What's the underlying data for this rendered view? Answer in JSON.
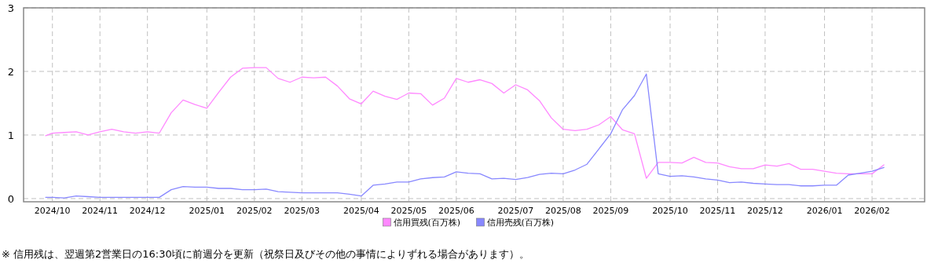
{
  "chart_data": {
    "type": "line",
    "x": [
      "2024-10-03",
      "2024-10-07",
      "2024-10-14",
      "2024-10-21",
      "2024-10-28",
      "2024-11-04",
      "2024-11-11",
      "2024-11-18",
      "2024-11-25",
      "2024-12-02",
      "2024-12-09",
      "2024-12-16",
      "2024-12-23",
      "2024-12-30",
      "2025-01-06",
      "2025-01-13",
      "2025-01-20",
      "2025-01-27",
      "2025-02-03",
      "2025-02-10",
      "2025-02-17",
      "2025-02-24",
      "2025-03-03",
      "2025-03-10",
      "2025-03-17",
      "2025-03-24",
      "2025-03-31",
      "2025-04-07",
      "2025-04-14",
      "2025-04-21",
      "2025-04-28",
      "2025-05-05",
      "2025-05-12",
      "2025-05-19",
      "2025-05-26",
      "2025-06-02",
      "2025-06-09",
      "2025-06-16",
      "2025-06-23",
      "2025-06-30",
      "2025-07-07",
      "2025-07-14",
      "2025-07-21",
      "2025-07-28",
      "2025-08-04",
      "2025-08-11",
      "2025-08-18",
      "2025-08-25",
      "2025-09-01",
      "2025-09-08",
      "2025-09-15",
      "2025-09-22",
      "2025-09-29",
      "2025-10-06",
      "2025-10-13",
      "2025-10-20",
      "2025-10-27",
      "2025-11-03",
      "2025-11-10",
      "2025-11-17",
      "2025-11-24",
      "2025-12-01",
      "2025-12-08",
      "2025-12-15",
      "2025-12-22",
      "2025-12-29",
      "2026-01-05",
      "2026-01-12",
      "2026-01-19",
      "2026-01-26",
      "2026-02-02",
      "2026-02-09"
    ],
    "series": [
      {
        "name": "信用買残(百万株)",
        "color": "#ff88ff",
        "values": [
          0.99,
          1.03,
          1.04,
          1.05,
          1.0,
          1.05,
          1.09,
          1.05,
          1.03,
          1.05,
          1.03,
          1.35,
          1.55,
          1.48,
          1.42,
          1.67,
          1.91,
          2.05,
          2.06,
          2.06,
          1.89,
          1.83,
          1.91,
          1.9,
          1.91,
          1.77,
          1.57,
          1.49,
          1.69,
          1.61,
          1.56,
          1.66,
          1.65,
          1.47,
          1.58,
          1.89,
          1.83,
          1.87,
          1.81,
          1.66,
          1.79,
          1.71,
          1.54,
          1.27,
          1.09,
          1.07,
          1.09,
          1.16,
          1.29,
          1.08,
          1.02,
          0.32,
          0.57,
          0.57,
          0.56,
          0.65,
          0.57,
          0.56,
          0.5,
          0.47,
          0.47,
          0.53,
          0.51,
          0.55,
          0.46,
          0.46,
          0.43,
          0.4,
          0.39,
          0.39,
          0.39,
          0.53
        ]
      },
      {
        "name": "信用売残(百万株)",
        "color": "#8888ff",
        "values": [
          0.02,
          0.02,
          0.01,
          0.04,
          0.03,
          0.02,
          0.02,
          0.02,
          0.02,
          0.02,
          0.02,
          0.14,
          0.19,
          0.18,
          0.18,
          0.16,
          0.16,
          0.14,
          0.14,
          0.15,
          0.11,
          0.1,
          0.09,
          0.09,
          0.09,
          0.09,
          0.07,
          0.04,
          0.21,
          0.23,
          0.26,
          0.26,
          0.31,
          0.33,
          0.34,
          0.42,
          0.4,
          0.39,
          0.31,
          0.32,
          0.3,
          0.33,
          0.38,
          0.4,
          0.39,
          0.45,
          0.54,
          0.78,
          1.02,
          1.4,
          1.62,
          1.96,
          0.39,
          0.35,
          0.36,
          0.34,
          0.31,
          0.29,
          0.25,
          0.26,
          0.24,
          0.23,
          0.22,
          0.22,
          0.2,
          0.2,
          0.21,
          0.21,
          0.37,
          0.4,
          0.43,
          0.49
        ]
      }
    ],
    "xlim": [
      "2024-09-20",
      "2026-03-05"
    ],
    "xticks": [
      {
        "value": "2024-10-07",
        "label": "2024/10"
      },
      {
        "value": "2024-11-04",
        "label": "2024/11"
      },
      {
        "value": "2024-12-02",
        "label": "2024/12"
      },
      {
        "value": "2025-01-06",
        "label": "2025/01"
      },
      {
        "value": "2025-02-03",
        "label": "2025/02"
      },
      {
        "value": "2025-03-03",
        "label": "2025/03"
      },
      {
        "value": "2025-04-07",
        "label": "2025/04"
      },
      {
        "value": "2025-05-05",
        "label": "2025/05"
      },
      {
        "value": "2025-06-02",
        "label": "2025/06"
      },
      {
        "value": "2025-07-07",
        "label": "2025/07"
      },
      {
        "value": "2025-08-04",
        "label": "2025/08"
      },
      {
        "value": "2025-09-01",
        "label": "2025/09"
      },
      {
        "value": "2025-10-06",
        "label": "2025/10"
      },
      {
        "value": "2025-11-03",
        "label": "2025/11"
      },
      {
        "value": "2025-12-01",
        "label": "2025/12"
      },
      {
        "value": "2026-01-05",
        "label": "2026/01"
      },
      {
        "value": "2026-02-02",
        "label": "2026/02"
      }
    ],
    "ylim": [
      -0.05,
      3
    ],
    "yticks": [
      0,
      1,
      2,
      3
    ],
    "grid": true,
    "legend": "bottom",
    "line_style": "solid",
    "marker": "none",
    "annotations": [
      "※ 信用残は、翌週第2営業日の16:30頃に前週分を更新（祝祭日及びその他の事情によりずれる場合があります）。"
    ]
  }
}
